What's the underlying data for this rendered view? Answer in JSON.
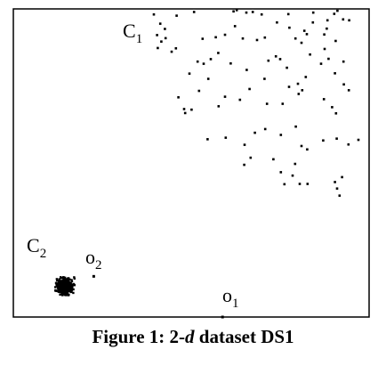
{
  "chart_data": {
    "type": "scatter",
    "title": "",
    "xlabel": "",
    "ylabel": "",
    "grid": false,
    "axes_ticks": false,
    "xlim": [
      0,
      100
    ],
    "ylim": [
      0,
      100
    ],
    "series": [
      {
        "name": "C1",
        "marker_color": "#000000",
        "points": [
          [
            39.5,
            1.8
          ],
          [
            45.9,
            2.2
          ],
          [
            50.8,
            1.0
          ],
          [
            61.9,
            0.8
          ],
          [
            62.8,
            0.4
          ],
          [
            65.5,
            1.2
          ],
          [
            67.3,
            1.0
          ],
          [
            69.8,
            1.8
          ],
          [
            77.3,
            1.7
          ],
          [
            84.3,
            1.2
          ],
          [
            90.2,
            1.6
          ],
          [
            91.1,
            0.6
          ],
          [
            41.3,
            4.8
          ],
          [
            42.6,
            6.5
          ],
          [
            62.3,
            5.6
          ],
          [
            74.1,
            4.4
          ],
          [
            77.6,
            6.1
          ],
          [
            84.2,
            4.4
          ],
          [
            88.3,
            3.7
          ],
          [
            92.7,
            3.4
          ],
          [
            94.4,
            3.7
          ],
          [
            40.4,
            8.5
          ],
          [
            41.6,
            10.6
          ],
          [
            42.8,
            9.5
          ],
          [
            45.7,
            12.8
          ],
          [
            53.2,
            9.7
          ],
          [
            56.9,
            9.2
          ],
          [
            59.5,
            8.4
          ],
          [
            64.5,
            9.6
          ],
          [
            68.5,
            10.1
          ],
          [
            70.7,
            9.3
          ],
          [
            79.3,
            9.6
          ],
          [
            81.8,
            7.1
          ],
          [
            82.5,
            8.2
          ],
          [
            87.4,
            8.3
          ],
          [
            88.1,
            6.4
          ],
          [
            90.6,
            10.4
          ],
          [
            40.6,
            12.7
          ],
          [
            44.5,
            13.9
          ],
          [
            53.5,
            17.8
          ],
          [
            61.1,
            17.7
          ],
          [
            71.7,
            16.8
          ],
          [
            73.8,
            15.4
          ],
          [
            75.0,
            16.3
          ],
          [
            76.9,
            19.1
          ],
          [
            81.0,
            11.0
          ],
          [
            83.4,
            14.8
          ],
          [
            86.5,
            17.8
          ],
          [
            87.5,
            13.0
          ],
          [
            88.6,
            16.2
          ],
          [
            90.4,
            20.9
          ],
          [
            92.8,
            17.1
          ],
          [
            49.5,
            21.0
          ],
          [
            51.8,
            17.1
          ],
          [
            54.8,
            22.7
          ],
          [
            55.5,
            16.3
          ],
          [
            57.6,
            14.3
          ],
          [
            65.6,
            19.8
          ],
          [
            66.4,
            26.0
          ],
          [
            70.6,
            22.7
          ],
          [
            77.5,
            25.3
          ],
          [
            80.0,
            24.3
          ],
          [
            81.2,
            26.4
          ],
          [
            82.2,
            22.1
          ],
          [
            92.9,
            24.5
          ],
          [
            94.3,
            26.4
          ],
          [
            46.4,
            28.7
          ],
          [
            48.0,
            32.5
          ],
          [
            52.2,
            26.6
          ],
          [
            57.7,
            31.6
          ],
          [
            59.5,
            28.5
          ],
          [
            63.7,
            29.5
          ],
          [
            71.3,
            30.8
          ],
          [
            75.7,
            30.8
          ],
          [
            80.2,
            27.6
          ],
          [
            87.3,
            29.3
          ],
          [
            89.6,
            31.9
          ],
          [
            90.7,
            33.9
          ],
          [
            48.3,
            33.8
          ],
          [
            50.1,
            32.7
          ],
          [
            54.6,
            42.3
          ],
          [
            59.7,
            41.8
          ],
          [
            65.0,
            44.1
          ],
          [
            67.9,
            40.2
          ],
          [
            70.8,
            39.0
          ],
          [
            75.2,
            40.9
          ],
          [
            79.4,
            38.2
          ],
          [
            81.0,
            44.5
          ],
          [
            82.6,
            45.6
          ],
          [
            87.1,
            42.7
          ],
          [
            90.9,
            42.1
          ],
          [
            94.2,
            44.0
          ],
          [
            97.0,
            42.5
          ],
          [
            64.9,
            50.6
          ],
          [
            66.7,
            48.3
          ],
          [
            73.1,
            48.8
          ],
          [
            75.2,
            53.0
          ],
          [
            76.2,
            56.9
          ],
          [
            78.5,
            54.1
          ],
          [
            79.2,
            50.3
          ],
          [
            80.5,
            56.8
          ],
          [
            82.7,
            56.8
          ],
          [
            90.4,
            56.2
          ],
          [
            91.0,
            58.3
          ],
          [
            92.4,
            54.6
          ],
          [
            91.7,
            60.6
          ]
        ]
      },
      {
        "name": "C2",
        "marker_color": "#000000",
        "center": [
          14.5,
          90.0
        ],
        "count": 350
      },
      {
        "name": "o2",
        "marker_color": "#000000",
        "points": [
          [
            22.6,
            86.8
          ]
        ]
      },
      {
        "name": "o1",
        "marker_color": "#000000",
        "points": [
          [
            58.8,
            100.0
          ]
        ]
      }
    ],
    "annotations": [
      {
        "text": "C",
        "sub": "1",
        "at": "upper-left of cluster C1"
      },
      {
        "text": "C",
        "sub": "2",
        "at": "above cluster C2"
      },
      {
        "text": "o",
        "sub": "2",
        "at": "near outlier o2"
      },
      {
        "text": "o",
        "sub": "1",
        "at": "near outlier o1"
      }
    ]
  },
  "caption": {
    "prefix": "Figure 1: 2-",
    "italic": "d",
    "suffix": " dataset DS1"
  }
}
